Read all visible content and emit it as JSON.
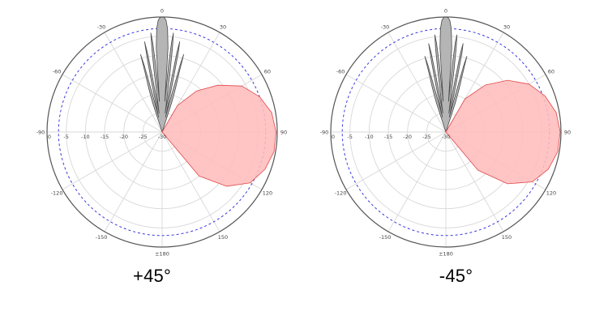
{
  "chart_data": [
    {
      "type": "polar",
      "caption": "+45°",
      "angle_ticks": [
        {
          "angle": 0,
          "label": "0"
        },
        {
          "angle": 30,
          "label": "30"
        },
        {
          "angle": 60,
          "label": "60"
        },
        {
          "angle": 90,
          "label": "90"
        },
        {
          "angle": 120,
          "label": "120"
        },
        {
          "angle": 150,
          "label": "150"
        },
        {
          "angle": 180,
          "label": "±180"
        },
        {
          "angle": -150,
          "label": "-150"
        },
        {
          "angle": -120,
          "label": "-120"
        },
        {
          "angle": -90,
          "label": "-90"
        },
        {
          "angle": -60,
          "label": "-60"
        },
        {
          "angle": -30,
          "label": "-30"
        }
      ],
      "radial_ticks": [
        "0",
        "-5",
        "-10",
        "-15",
        "-20",
        "-25",
        "-30"
      ],
      "rlim": [
        -30,
        0
      ],
      "reference_ring_db": -3,
      "reference_ring_color": "#3a3ae0",
      "series": [
        {
          "fill": "#b5b5b5",
          "stroke": "#4a4a4a",
          "points": [
            [
              -20,
              -30
            ],
            [
              -18,
              -22
            ],
            [
              -17,
              -18
            ],
            [
              -16,
              -14
            ],
            [
              -15.5,
              -9
            ],
            [
              -15,
              -12
            ],
            [
              -14,
              -22
            ],
            [
              -13,
              -26
            ],
            [
              -12,
              -17
            ],
            [
              -11.5,
              -11
            ],
            [
              -11,
              -6
            ],
            [
              -10.5,
              -9
            ],
            [
              -10,
              -16
            ],
            [
              -9,
              -25
            ],
            [
              -8,
              -20
            ],
            [
              -7.5,
              -14
            ],
            [
              -7,
              -8
            ],
            [
              -6.5,
              -4
            ],
            [
              -6,
              -6.5
            ],
            [
              -5.5,
              -12
            ],
            [
              -5,
              -22
            ],
            [
              -4,
              -8
            ],
            [
              -3,
              -3
            ],
            [
              -2,
              -0.8
            ],
            [
              -1,
              -0.1
            ],
            [
              0,
              0
            ],
            [
              1,
              -0.1
            ],
            [
              2,
              -0.8
            ],
            [
              3,
              -3
            ],
            [
              4,
              -8
            ],
            [
              5,
              -22
            ],
            [
              5.5,
              -12
            ],
            [
              6,
              -6.5
            ],
            [
              6.5,
              -4
            ],
            [
              7,
              -8
            ],
            [
              7.5,
              -14
            ],
            [
              8,
              -20
            ],
            [
              9,
              -25
            ],
            [
              10,
              -16
            ],
            [
              10.5,
              -9
            ],
            [
              11,
              -6
            ],
            [
              11.5,
              -9
            ],
            [
              12,
              -17
            ],
            [
              13,
              -26
            ],
            [
              14,
              -22
            ],
            [
              15,
              -12
            ],
            [
              15.5,
              -9
            ],
            [
              16,
              -14
            ],
            [
              17,
              -18
            ],
            [
              18,
              -22
            ],
            [
              20,
              -30
            ]
          ]
        },
        {
          "fill": "#ffbcbc",
          "stroke": "#e2484a",
          "points": [
            [
              20,
              -30
            ],
            [
              30,
              -22
            ],
            [
              40,
              -16
            ],
            [
              50,
              -11
            ],
            [
              60,
              -6
            ],
            [
              70,
              -3
            ],
            [
              80,
              -1
            ],
            [
              90,
              -0.3
            ],
            [
              100,
              -0.4
            ],
            [
              110,
              -1.5
            ],
            [
              120,
              -3.5
            ],
            [
              130,
              -8
            ],
            [
              140,
              -15
            ],
            [
              150,
              -30
            ]
          ]
        }
      ]
    },
    {
      "type": "polar",
      "caption": "-45°",
      "angle_ticks": [
        {
          "angle": 0,
          "label": "0"
        },
        {
          "angle": 30,
          "label": "30"
        },
        {
          "angle": 60,
          "label": "60"
        },
        {
          "angle": 90,
          "label": "90"
        },
        {
          "angle": 120,
          "label": "120"
        },
        {
          "angle": 150,
          "label": "150"
        },
        {
          "angle": 180,
          "label": "±180"
        },
        {
          "angle": -150,
          "label": "-150"
        },
        {
          "angle": -120,
          "label": "-120"
        },
        {
          "angle": -90,
          "label": "-90"
        },
        {
          "angle": -60,
          "label": "-60"
        },
        {
          "angle": -30,
          "label": "-30"
        }
      ],
      "radial_ticks": [
        "0",
        "-5",
        "-10",
        "-15",
        "-20",
        "-25",
        "-30"
      ],
      "rlim": [
        -30,
        0
      ],
      "reference_ring_db": -3,
      "reference_ring_color": "#3a3ae0",
      "series": [
        {
          "fill": "#b5b5b5",
          "stroke": "#4a4a4a",
          "points": [
            [
              -20,
              -30
            ],
            [
              -18,
              -22
            ],
            [
              -17,
              -18
            ],
            [
              -16,
              -14
            ],
            [
              -15.5,
              -9.5
            ],
            [
              -15,
              -12
            ],
            [
              -14,
              -22
            ],
            [
              -13,
              -26
            ],
            [
              -12,
              -17
            ],
            [
              -11.5,
              -11
            ],
            [
              -11,
              -6.5
            ],
            [
              -10.5,
              -9
            ],
            [
              -10,
              -16
            ],
            [
              -9,
              -25
            ],
            [
              -8,
              -20
            ],
            [
              -7.5,
              -14
            ],
            [
              -7,
              -8
            ],
            [
              -6.5,
              -4.5
            ],
            [
              -6,
              -6.5
            ],
            [
              -5.5,
              -12
            ],
            [
              -5,
              -22
            ],
            [
              -4,
              -8
            ],
            [
              -3,
              -3
            ],
            [
              -2,
              -0.8
            ],
            [
              -1,
              -0.1
            ],
            [
              0,
              0
            ],
            [
              1,
              -0.1
            ],
            [
              2,
              -0.8
            ],
            [
              3,
              -3
            ],
            [
              4,
              -8
            ],
            [
              5,
              -22
            ],
            [
              5.5,
              -12
            ],
            [
              6,
              -6.5
            ],
            [
              6.5,
              -4.5
            ],
            [
              7,
              -8
            ],
            [
              7.5,
              -14
            ],
            [
              8,
              -20
            ],
            [
              9,
              -25
            ],
            [
              10,
              -16
            ],
            [
              10.5,
              -9
            ],
            [
              11,
              -6.5
            ],
            [
              11.5,
              -9
            ],
            [
              12,
              -17
            ],
            [
              13,
              -26
            ],
            [
              14,
              -22
            ],
            [
              15,
              -12
            ],
            [
              15.5,
              -9.5
            ],
            [
              16,
              -14
            ],
            [
              17,
              -18
            ],
            [
              18,
              -22
            ],
            [
              20,
              -30
            ]
          ]
        },
        {
          "fill": "#ffbcbc",
          "stroke": "#e2484a",
          "points": [
            [
              20,
              -30
            ],
            [
              30,
              -20
            ],
            [
              40,
              -14
            ],
            [
              50,
              -9
            ],
            [
              60,
              -5
            ],
            [
              70,
              -2.5
            ],
            [
              80,
              -0.8
            ],
            [
              90,
              -0.2
            ],
            [
              100,
              -0.4
            ],
            [
              110,
              -1.6
            ],
            [
              120,
              -4
            ],
            [
              130,
              -9
            ],
            [
              140,
              -17
            ],
            [
              150,
              -30
            ]
          ]
        }
      ]
    }
  ]
}
